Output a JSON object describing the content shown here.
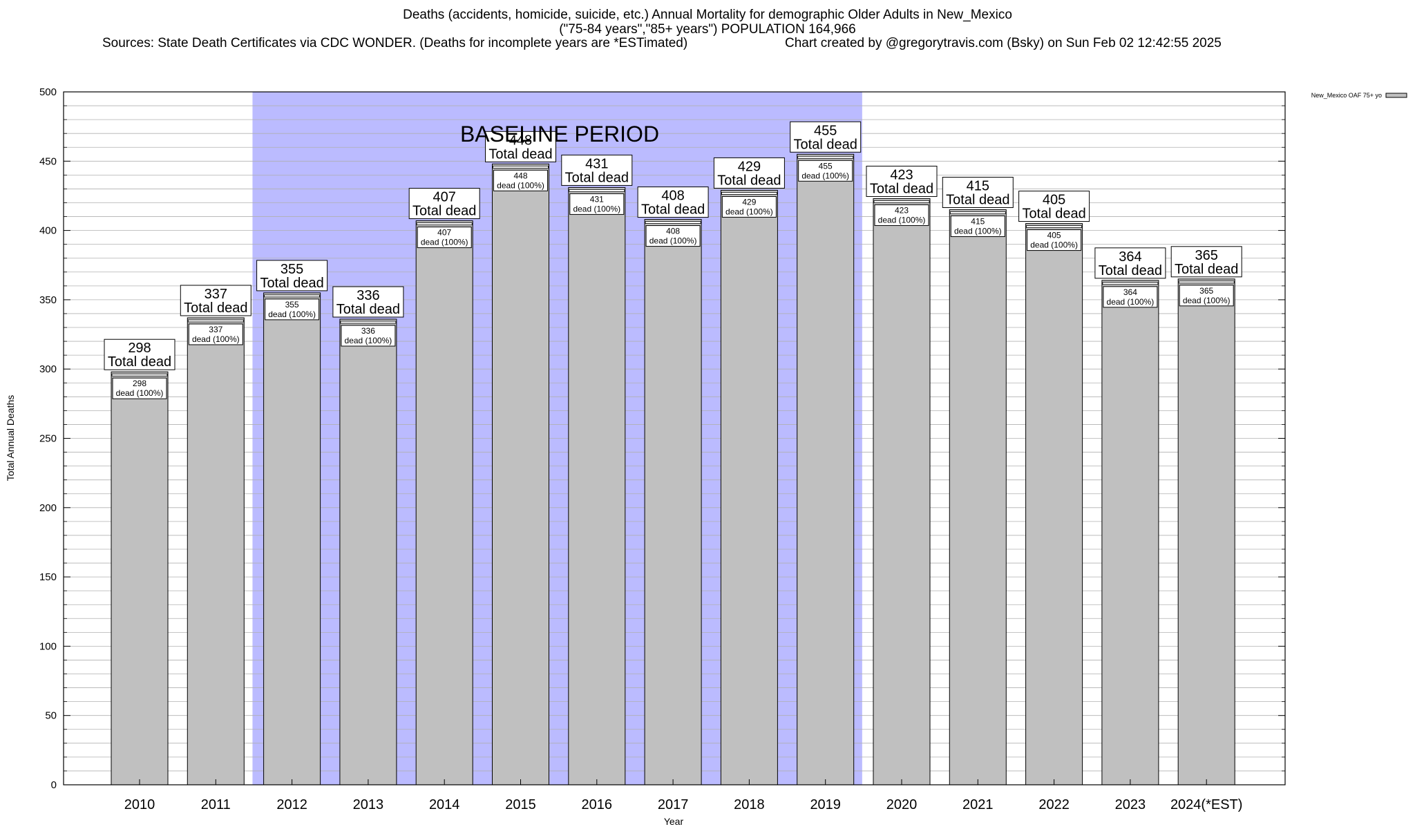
{
  "header": {
    "title_line1": "Deaths (accidents, homicide, suicide, etc.) Annual Mortality for demographic Older Adults in New_Mexico",
    "title_line2": "(\"75-84 years\",\"85+ years\") POPULATION 164,966",
    "sources": "Sources: State Death Certificates via CDC WONDER. (Deaths for incomplete years are *ESTimated)",
    "credit": "Chart created by @gregorytravis.com (Bsky) on Sun Feb 02 12:42:55 2025"
  },
  "chart_data": {
    "type": "bar",
    "xlabel": "Year",
    "ylabel": "Total Annual Deaths",
    "ylim": [
      0,
      500
    ],
    "y_ticks": [
      0,
      50,
      100,
      150,
      200,
      250,
      300,
      350,
      400,
      450,
      500
    ],
    "grid": "horizontal",
    "categories": [
      "2010",
      "2011",
      "2012",
      "2013",
      "2014",
      "2015",
      "2016",
      "2017",
      "2018",
      "2019",
      "2020",
      "2021",
      "2022",
      "2023",
      "2024(*EST)"
    ],
    "series": [
      {
        "name": "New_Mexico OAF 75+ yo",
        "values": [
          298,
          337,
          355,
          336,
          407,
          448,
          431,
          408,
          429,
          455,
          423,
          415,
          405,
          364,
          365
        ],
        "color": "#c0c0c0"
      }
    ],
    "total_label_suffix": "Total dead",
    "inner_label_suffix": "dead (100%)",
    "baseline_period": {
      "label": "BASELINE PERIOD",
      "start": "2012",
      "end": "2019",
      "color": "#bbbbff"
    },
    "legend_position": "top-right"
  }
}
